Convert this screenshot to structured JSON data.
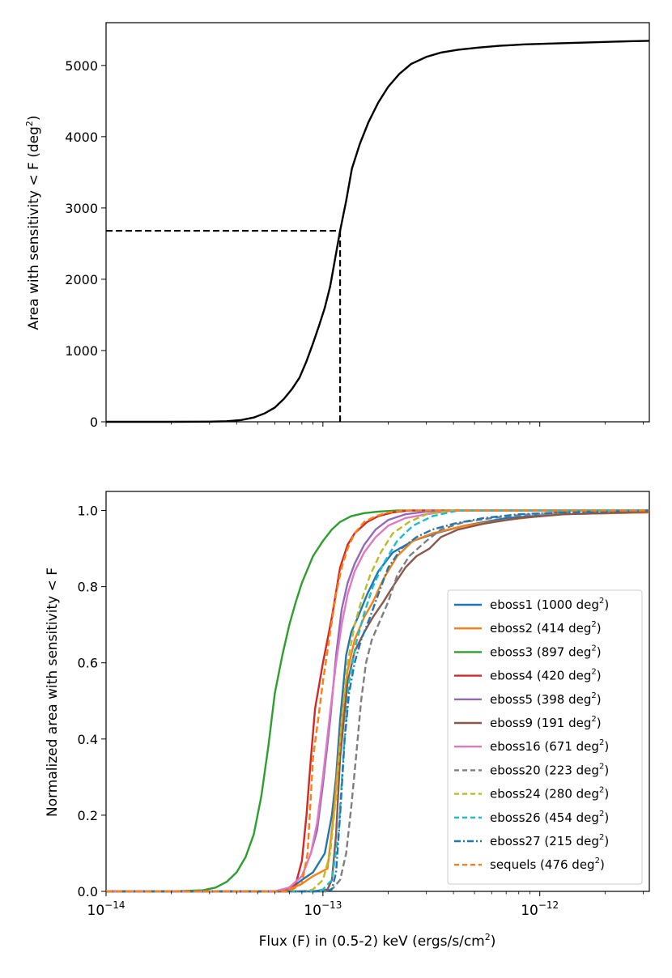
{
  "chart_data": [
    {
      "type": "line",
      "ylabel_main": "Area with sensitivity < F (deg",
      "ylabel_sup": "2",
      "ylabel_end": ")",
      "xscale": "log",
      "xlim": [
        1e-14,
        3.2e-12
      ],
      "ylim": [
        0,
        5600
      ],
      "yticks": [
        0,
        1000,
        2000,
        3000,
        4000,
        5000
      ],
      "yticklabels": [
        "0",
        "1000",
        "2000",
        "3000",
        "4000",
        "5000"
      ],
      "xticklabels_visible": false,
      "series": [
        {
          "name": "total",
          "color": "#000000",
          "style": "solid",
          "x": [
            1e-14,
            2e-14,
            3e-14,
            3.6e-14,
            4.2e-14,
            4.8e-14,
            5.4e-14,
            6e-14,
            6.6e-14,
            7.2e-14,
            7.8e-14,
            8.4e-14,
            9e-14,
            9.6e-14,
            1.02e-13,
            1.08e-13,
            1.14e-13,
            1.2e-13,
            1.28e-13,
            1.36e-13,
            1.48e-13,
            1.62e-13,
            1.8e-13,
            2e-13,
            2.25e-13,
            2.55e-13,
            3e-13,
            3.5e-13,
            4.2e-13,
            5.2e-13,
            6.5e-13,
            8.5e-13,
            1.2e-12,
            1.8e-12,
            2.6e-12,
            3.2e-12
          ],
          "y": [
            0,
            0,
            2,
            8,
            25,
            60,
            120,
            200,
            320,
            460,
            620,
            850,
            1100,
            1350,
            1600,
            1900,
            2300,
            2680,
            3100,
            3550,
            3900,
            4200,
            4480,
            4700,
            4880,
            5020,
            5120,
            5180,
            5220,
            5250,
            5275,
            5295,
            5310,
            5325,
            5340,
            5345
          ]
        }
      ],
      "guide": {
        "x": 1.2e-13,
        "y": 2680,
        "style": "dashed"
      }
    },
    {
      "type": "line",
      "ylabel": "Normalized area with sensitivity < F",
      "xlabel_main": "Flux (F) in (0.5-2) keV (ergs/s/cm",
      "xlabel_sup": "2",
      "xlabel_end": ")",
      "xscale": "log",
      "xlim": [
        1e-14,
        3.2e-12
      ],
      "ylim": [
        0,
        1.05
      ],
      "yticks": [
        0.0,
        0.2,
        0.4,
        0.6,
        0.8,
        1.0
      ],
      "yticklabels": [
        "0.0",
        "0.2",
        "0.4",
        "0.6",
        "0.8",
        "1.0"
      ],
      "xticks": [
        1e-14,
        1e-13,
        1e-12
      ],
      "xticklabel_base": "10",
      "xticklabel_exps": [
        "−14",
        "−13",
        "−12"
      ],
      "legend_position": "lower-right",
      "series": [
        {
          "name": "eboss1",
          "label": "eboss1 (1000 deg",
          "sup": "2",
          "end": ")",
          "color": "#1f77b4",
          "style": "solid",
          "x": [
            6e-14,
            7e-14,
            8e-14,
            9e-14,
            1.02e-13,
            1.1e-13,
            1.15e-13,
            1.2e-13,
            1.28e-13,
            1.35e-13,
            1.45e-13,
            1.6e-13,
            1.8e-13,
            2.1e-13,
            2.6e-13,
            3.3e-13,
            4.5e-13,
            7e-13,
            1.2e-12,
            3.2e-12
          ],
          "y": [
            0,
            0.005,
            0.03,
            0.05,
            0.1,
            0.2,
            0.3,
            0.45,
            0.62,
            0.68,
            0.72,
            0.78,
            0.84,
            0.89,
            0.92,
            0.94,
            0.96,
            0.98,
            0.99,
            0.995
          ]
        },
        {
          "name": "eboss2",
          "label": "eboss2 (414 deg",
          "sup": "2",
          "end": ")",
          "color": "#ff7f0e",
          "style": "solid",
          "x": [
            6e-14,
            7e-14,
            8e-14,
            9e-14,
            1.05e-13,
            1.12e-13,
            1.18e-13,
            1.25e-13,
            1.3e-13,
            1.4e-13,
            1.55e-13,
            1.7e-13,
            1.9e-13,
            2.2e-13,
            2.6e-13,
            3.2e-13,
            4.5e-13,
            7e-13,
            1.2e-12,
            3.2e-12
          ],
          "y": [
            0,
            0.005,
            0.02,
            0.04,
            0.06,
            0.2,
            0.35,
            0.5,
            0.58,
            0.66,
            0.72,
            0.76,
            0.82,
            0.88,
            0.92,
            0.94,
            0.96,
            0.975,
            0.99,
            0.995
          ]
        },
        {
          "name": "eboss3",
          "label": "eboss3 (897 deg",
          "sup": "2",
          "end": ")",
          "color": "#2ca02c",
          "style": "solid",
          "x": [
            2e-14,
            2.8e-14,
            3.2e-14,
            3.6e-14,
            4e-14,
            4.4e-14,
            4.8e-14,
            5.2e-14,
            5.6e-14,
            6e-14,
            6.5e-14,
            7e-14,
            7.5e-14,
            8e-14,
            9e-14,
            1e-13,
            1.1e-13,
            1.2e-13,
            1.35e-13,
            1.55e-13,
            1.8e-13,
            2.2e-13,
            3e-13,
            3.2e-12
          ],
          "y": [
            0,
            0.003,
            0.01,
            0.025,
            0.05,
            0.09,
            0.15,
            0.25,
            0.38,
            0.52,
            0.62,
            0.7,
            0.76,
            0.81,
            0.88,
            0.92,
            0.95,
            0.97,
            0.985,
            0.993,
            0.997,
            1.0,
            1.0,
            1.0
          ]
        },
        {
          "name": "eboss4",
          "label": "eboss4 (420 deg",
          "sup": "2",
          "end": ")",
          "color": "#d62728",
          "style": "solid",
          "x": [
            6.5e-14,
            7.5e-14,
            8e-14,
            8.4e-14,
            8.8e-14,
            9.2e-14,
            1e-13,
            1.1e-13,
            1.2e-13,
            1.3e-13,
            1.4e-13,
            1.6e-13,
            1.8e-13,
            2.1e-13,
            2.5e-13,
            3e-13,
            3.2e-12
          ],
          "y": [
            0,
            0.02,
            0.08,
            0.2,
            0.35,
            0.48,
            0.6,
            0.72,
            0.85,
            0.91,
            0.94,
            0.97,
            0.985,
            0.995,
            1.0,
            1.0,
            1.0
          ]
        },
        {
          "name": "eboss5",
          "label": "eboss5 (398 deg",
          "sup": "2",
          "end": ")",
          "color": "#9467bd",
          "style": "solid",
          "x": [
            6e-14,
            7e-14,
            8e-14,
            8.8e-14,
            9.4e-14,
            1e-13,
            1.08e-13,
            1.15e-13,
            1.22e-13,
            1.3e-13,
            1.4e-13,
            1.55e-13,
            1.75e-13,
            2e-13,
            2.4e-13,
            3e-13,
            4e-13,
            3.2e-12
          ],
          "y": [
            0,
            0.01,
            0.04,
            0.1,
            0.16,
            0.28,
            0.45,
            0.62,
            0.74,
            0.81,
            0.86,
            0.91,
            0.95,
            0.975,
            0.99,
            0.997,
            1.0,
            1.0
          ]
        },
        {
          "name": "eboss9",
          "label": "eboss9 (191 deg",
          "sup": "2",
          "end": ")",
          "color": "#8c564b",
          "style": "solid",
          "x": [
            9e-14,
            1.05e-13,
            1.1e-13,
            1.15e-13,
            1.2e-13,
            1.3e-13,
            1.4e-13,
            1.55e-13,
            1.7e-13,
            1.9e-13,
            2.1e-13,
            2.4e-13,
            2.7e-13,
            3.1e-13,
            3.5e-13,
            4.2e-13,
            5.5e-13,
            8e-13,
            1.3e-12,
            3.2e-12
          ],
          "y": [
            0,
            0.005,
            0.03,
            0.15,
            0.35,
            0.55,
            0.63,
            0.68,
            0.72,
            0.76,
            0.8,
            0.85,
            0.88,
            0.9,
            0.93,
            0.95,
            0.965,
            0.98,
            0.99,
            0.997
          ]
        },
        {
          "name": "eboss16",
          "label": "eboss16 (671 deg",
          "sup": "2",
          "end": ")",
          "color": "#e377c2",
          "style": "solid",
          "x": [
            6e-14,
            7e-14,
            8e-14,
            8.8e-14,
            9.4e-14,
            1e-13,
            1.08e-13,
            1.15e-13,
            1.22e-13,
            1.3e-13,
            1.4e-13,
            1.55e-13,
            1.75e-13,
            2e-13,
            2.4e-13,
            3e-13,
            4e-13,
            3.2e-12
          ],
          "y": [
            0,
            0.01,
            0.04,
            0.1,
            0.18,
            0.3,
            0.47,
            0.6,
            0.7,
            0.78,
            0.84,
            0.89,
            0.93,
            0.96,
            0.98,
            0.99,
            1.0,
            1.0
          ]
        },
        {
          "name": "eboss20",
          "label": "eboss20 (223 deg",
          "sup": "2",
          "end": ")",
          "color": "#7f7f7f",
          "style": "dashed",
          "x": [
            1.05e-13,
            1.12e-13,
            1.2e-13,
            1.28e-13,
            1.35e-13,
            1.42e-13,
            1.5e-13,
            1.58e-13,
            1.68e-13,
            1.8e-13,
            2e-13,
            2.2e-13,
            2.5e-13,
            3e-13,
            3.5e-13,
            4.5e-13,
            7e-13,
            1.2e-12,
            3.2e-12
          ],
          "y": [
            0,
            0.01,
            0.03,
            0.1,
            0.22,
            0.35,
            0.5,
            0.6,
            0.66,
            0.7,
            0.76,
            0.83,
            0.88,
            0.92,
            0.95,
            0.97,
            0.985,
            0.995,
            1.0
          ]
        },
        {
          "name": "eboss24",
          "label": "eboss24 (280 deg",
          "sup": "2",
          "end": ")",
          "color": "#bcbd22",
          "style": "dashed",
          "x": [
            8e-14,
            9e-14,
            1e-13,
            1.08e-13,
            1.15e-13,
            1.22e-13,
            1.3e-13,
            1.4e-13,
            1.5e-13,
            1.65e-13,
            1.85e-13,
            2.1e-13,
            2.5e-13,
            3e-13,
            4e-13,
            3.2e-12
          ],
          "y": [
            0,
            0.005,
            0.03,
            0.1,
            0.25,
            0.45,
            0.6,
            0.7,
            0.76,
            0.83,
            0.89,
            0.94,
            0.97,
            0.99,
            1.0,
            1.0
          ]
        },
        {
          "name": "eboss26",
          "label": "eboss26 (454 deg",
          "sup": "2",
          "end": ")",
          "color": "#17becf",
          "style": "dashed",
          "x": [
            9e-14,
            1e-13,
            1.1e-13,
            1.18e-13,
            1.25e-13,
            1.32e-13,
            1.42e-13,
            1.55e-13,
            1.7e-13,
            1.9e-13,
            2.2e-13,
            2.6e-13,
            3.2e-13,
            4.2e-13,
            3.2e-12
          ],
          "y": [
            0,
            0.005,
            0.03,
            0.15,
            0.38,
            0.55,
            0.65,
            0.73,
            0.8,
            0.86,
            0.92,
            0.96,
            0.985,
            1.0,
            1.0
          ]
        },
        {
          "name": "eboss27",
          "label": "eboss27 (215 deg",
          "sup": "2",
          "end": ")",
          "color": "#1f77b4",
          "style": "dashdot",
          "x": [
            1.02e-13,
            1.1e-13,
            1.15e-13,
            1.2e-13,
            1.26e-13,
            1.32e-13,
            1.4e-13,
            1.5e-13,
            1.65e-13,
            1.8e-13,
            2e-13,
            2.3e-13,
            2.7e-13,
            3.2e-13,
            4e-13,
            5.5e-13,
            8e-13,
            1.3e-12,
            3.2e-12
          ],
          "y": [
            0,
            0.005,
            0.05,
            0.2,
            0.4,
            0.52,
            0.6,
            0.66,
            0.72,
            0.78,
            0.85,
            0.9,
            0.93,
            0.95,
            0.965,
            0.98,
            0.99,
            0.995,
            1.0
          ]
        },
        {
          "name": "sequels",
          "label": "sequels (476 deg",
          "sup": "2",
          "end": ")",
          "color": "#ff7f0e",
          "style": "dashed",
          "x": [
            7e-14,
            8e-14,
            8.5e-14,
            9e-14,
            9.5e-14,
            1e-13,
            1.08e-13,
            1.15e-13,
            1.22e-13,
            1.3e-13,
            1.4e-13,
            1.55e-13,
            1.75e-13,
            2e-13,
            2.4e-13,
            3e-13,
            3.2e-12
          ],
          "y": [
            0,
            0.02,
            0.1,
            0.35,
            0.45,
            0.55,
            0.68,
            0.78,
            0.85,
            0.9,
            0.94,
            0.97,
            0.985,
            0.995,
            1.0,
            1.0,
            1.0
          ]
        }
      ]
    }
  ]
}
